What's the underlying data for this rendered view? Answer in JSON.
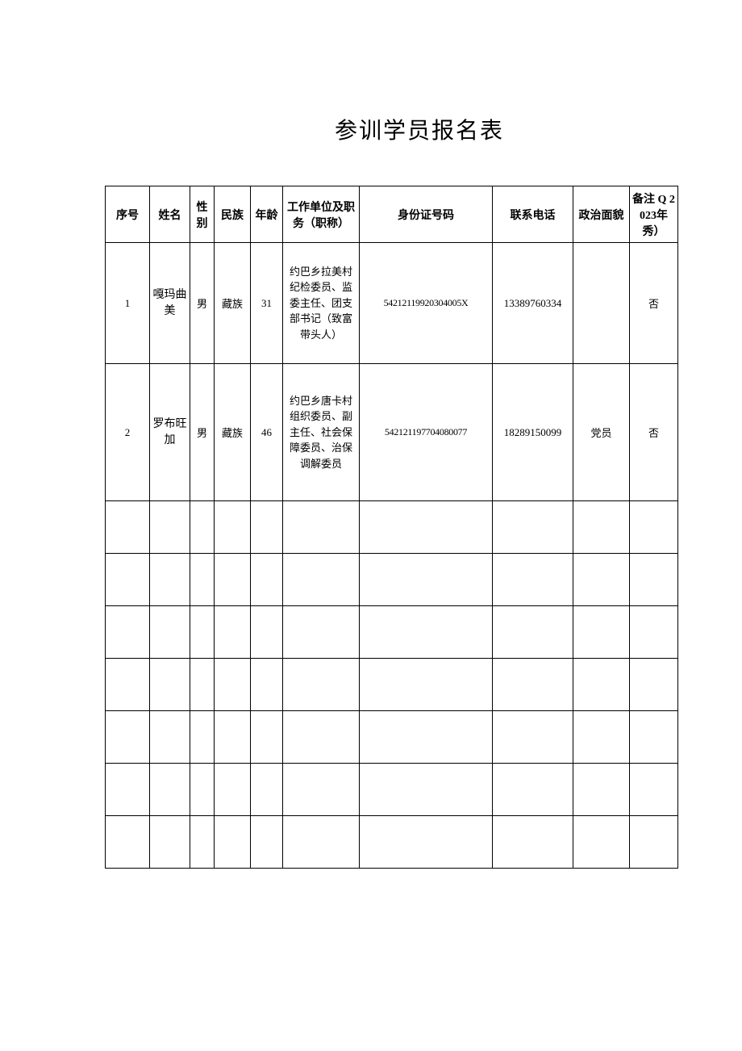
{
  "title": "参训学员报名表",
  "columns": {
    "seq": "序号",
    "name": "姓名",
    "gender": "性别",
    "ethnic": "民族",
    "age": "年龄",
    "position": "工作单位及职务（职称）",
    "id": "身份证号码",
    "phone": "联系电话",
    "political": "政治面貌",
    "remark": "备注 Q 2023年秀）"
  },
  "rows": [
    {
      "seq": "1",
      "name": "嘎玛曲美",
      "gender": "男",
      "ethnic": "藏族",
      "age": "31",
      "position": "约巴乡拉美村纪检委员、监委主任、团支部书记（致富带头人）",
      "id": "54212119920304005X",
      "phone": "13389760334",
      "political": "",
      "remark": "否"
    },
    {
      "seq": "2",
      "name": "罗布旺加",
      "gender": "男",
      "ethnic": "藏族",
      "age": "46",
      "position": "约巴乡唐卡村组织委员、副主任、社会保障委员、治保调解委员",
      "id": "542121197704080077",
      "phone": "18289150099",
      "political": "党员",
      "remark": "否"
    }
  ],
  "emptyRowCount": 7
}
